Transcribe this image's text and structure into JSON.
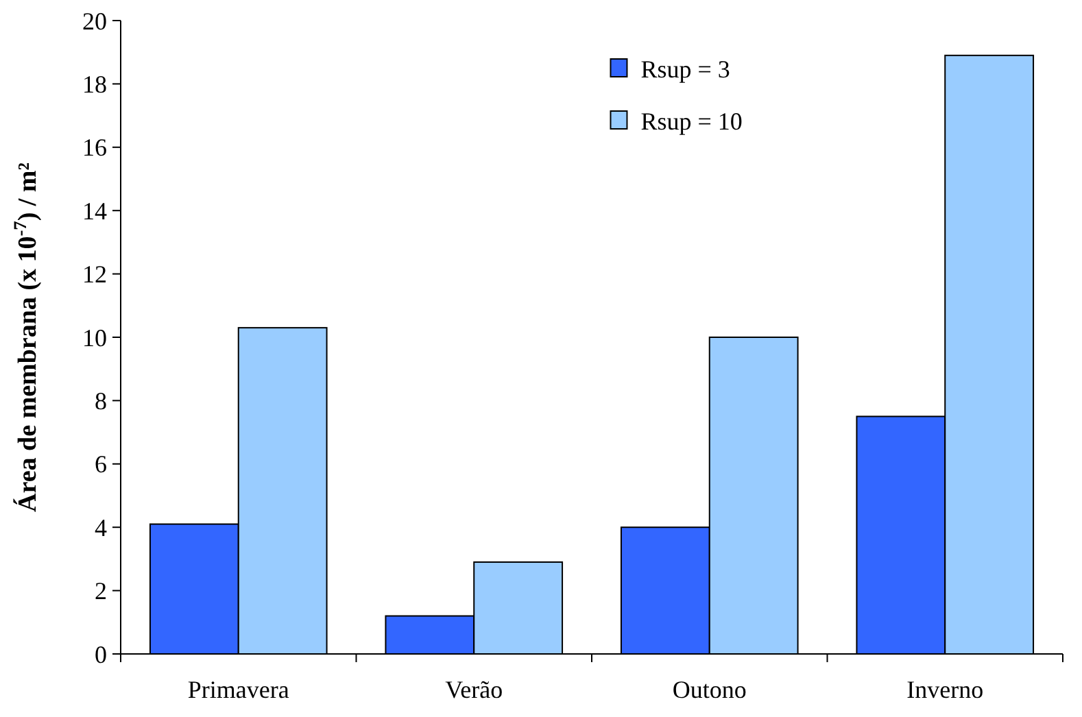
{
  "chart_data": {
    "type": "bar",
    "ylabel": "Área de membrana (x 10$^{-7}$) / m²",
    "categories": [
      "Primavera",
      "Verão",
      "Outono",
      "Inverno"
    ],
    "series": [
      {
        "name": "Rsup = 3",
        "color": "#3366ff",
        "values": [
          4.1,
          1.2,
          4.0,
          7.5
        ]
      },
      {
        "name": "Rsup = 10",
        "color": "#99ccff",
        "values": [
          10.3,
          2.9,
          10.0,
          18.9
        ]
      }
    ],
    "ylim": [
      0,
      20
    ],
    "yticks": [
      0,
      2,
      4,
      6,
      8,
      10,
      12,
      14,
      16,
      18,
      20
    ],
    "grid": false,
    "legend": "top right"
  }
}
